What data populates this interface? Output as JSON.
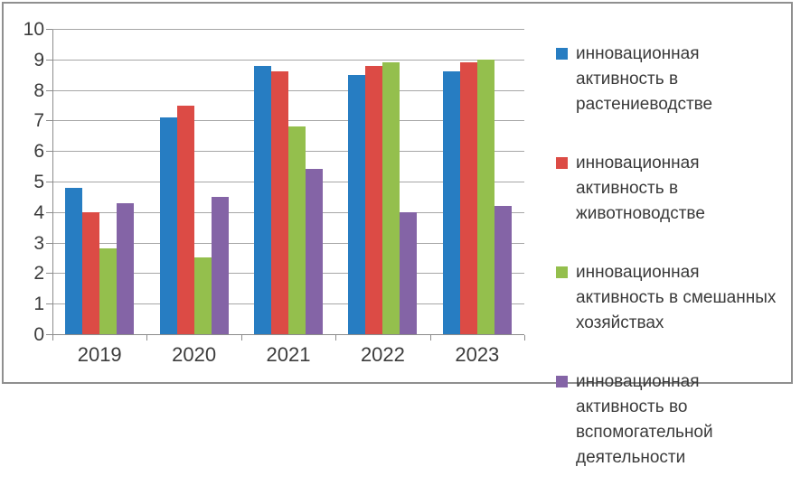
{
  "chart_data": {
    "type": "bar",
    "categories": [
      "2019",
      "2020",
      "2021",
      "2022",
      "2023"
    ],
    "series": [
      {
        "name": "инновационная активность в растениеводстве",
        "color": "#277dc2",
        "values": [
          4.8,
          7.1,
          8.8,
          8.5,
          8.6
        ]
      },
      {
        "name": "инновационная активность в животноводстве",
        "color": "#dc4b45",
        "values": [
          4.0,
          7.5,
          8.6,
          8.8,
          8.9
        ]
      },
      {
        "name": "инновационная активность в смешанных хозяйствах",
        "color": "#94bf4d",
        "values": [
          2.8,
          2.5,
          6.8,
          8.9,
          9.0
        ]
      },
      {
        "name": "инновационная активность во вспомогательной деятельности",
        "color": "#8464a6",
        "values": [
          4.3,
          4.5,
          5.4,
          4.0,
          4.2
        ]
      }
    ],
    "title": "",
    "xlabel": "",
    "ylabel": "",
    "ylim": [
      0,
      10
    ],
    "ytick_step": 1,
    "grid": true,
    "legend_position": "right"
  },
  "colors": {
    "background": "#ffffff",
    "frame_border": "#8f8f8f",
    "gridline": "#a6a6a6",
    "axis_line": "#8c8c8c",
    "text": "#3c3c3c"
  }
}
